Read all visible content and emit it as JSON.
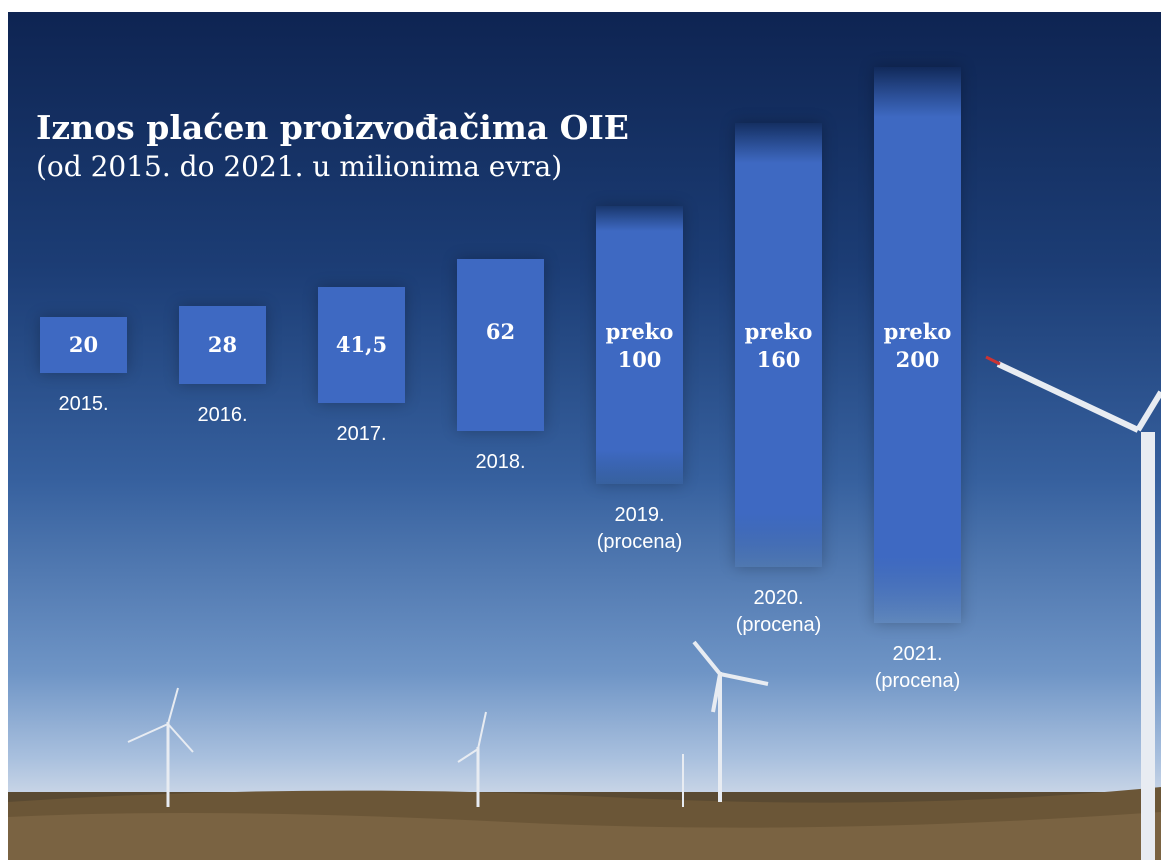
{
  "chart_data": {
    "type": "bar",
    "title": "Iznos plaćen proizvođačima OIE",
    "subtitle": "(od 2015. do 2021. u milionima evra)",
    "categories": [
      "2015.",
      "2016.",
      "2017.",
      "2018.",
      "2019. (procena)",
      "2020. (procena)",
      "2021. (procena)"
    ],
    "values": [
      20,
      28,
      41.5,
      62,
      100,
      160,
      200
    ],
    "value_labels": [
      "20",
      "28",
      "41,5",
      "62",
      "preko 100",
      "preko 160",
      "preko 200"
    ],
    "color": "#3e69c2"
  }
}
